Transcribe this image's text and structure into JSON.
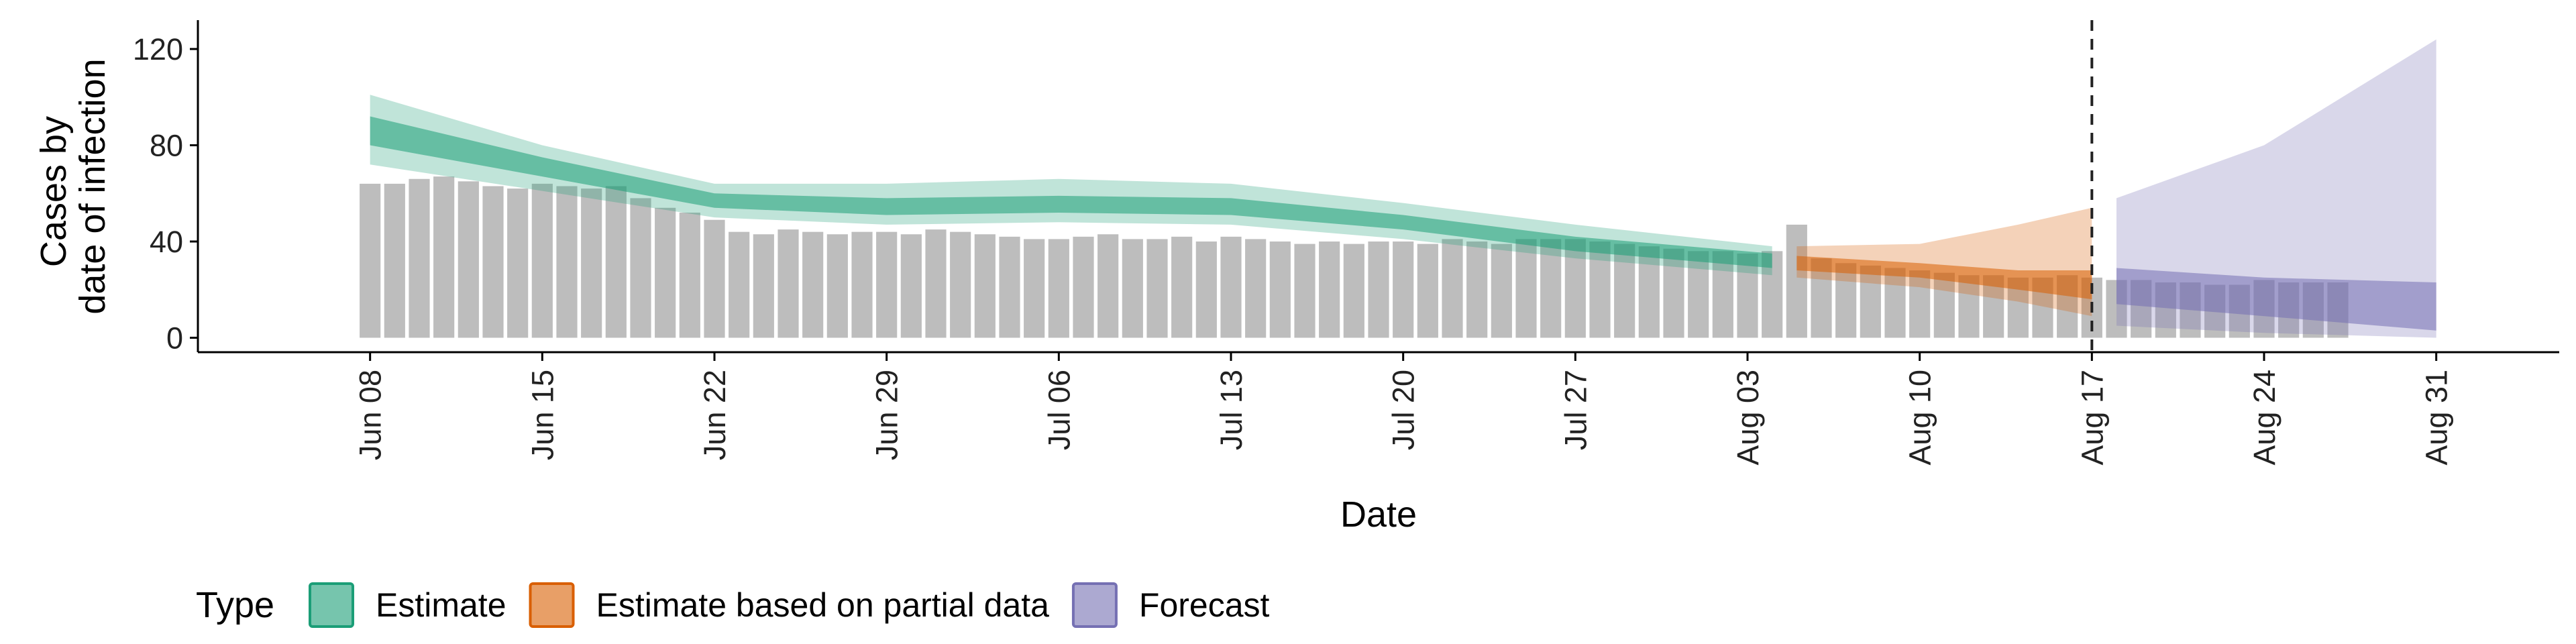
{
  "chart_data": {
    "type": "area",
    "xlabel": "Date",
    "ylabel_lines": [
      "Cases by",
      "date of infection"
    ],
    "ylim": [
      -6,
      132
    ],
    "xlim": [
      "2020-06-01",
      "2020-09-05"
    ],
    "y_ticks": [
      0,
      40,
      80,
      120
    ],
    "x_ticks": [
      {
        "date": "2020-06-08",
        "label": "Jun 08"
      },
      {
        "date": "2020-06-15",
        "label": "Jun 15"
      },
      {
        "date": "2020-06-22",
        "label": "Jun 22"
      },
      {
        "date": "2020-06-29",
        "label": "Jun 29"
      },
      {
        "date": "2020-07-06",
        "label": "Jul 06"
      },
      {
        "date": "2020-07-13",
        "label": "Jul 13"
      },
      {
        "date": "2020-07-20",
        "label": "Jul 20"
      },
      {
        "date": "2020-07-27",
        "label": "Jul 27"
      },
      {
        "date": "2020-08-03",
        "label": "Aug 03"
      },
      {
        "date": "2020-08-10",
        "label": "Aug 10"
      },
      {
        "date": "2020-08-17",
        "label": "Aug 17"
      },
      {
        "date": "2020-08-24",
        "label": "Aug 24"
      },
      {
        "date": "2020-08-31",
        "label": "Aug 31"
      }
    ],
    "forecast_date": "2020-08-17",
    "observed_cases": {
      "start_date": "2020-06-08",
      "values": [
        64,
        64,
        66,
        67,
        65,
        63,
        62,
        64,
        63,
        62,
        63,
        58,
        54,
        52,
        49,
        44,
        43,
        45,
        44,
        43,
        44,
        44,
        43,
        45,
        44,
        43,
        42,
        41,
        41,
        42,
        43,
        41,
        41,
        42,
        40,
        42,
        41,
        40,
        39,
        40,
        39,
        40,
        40,
        39,
        41,
        40,
        39,
        41,
        41,
        41,
        40,
        39,
        38,
        37,
        36,
        36,
        35,
        36,
        47,
        33,
        31,
        30,
        29,
        28,
        27,
        26,
        26,
        25,
        25,
        26,
        25,
        24,
        24,
        23,
        23,
        22,
        22,
        24,
        23,
        23,
        23
      ]
    },
    "series": [
      {
        "name": "Estimate",
        "color": "#1b9e77",
        "points": [
          {
            "date": "2020-06-08",
            "median": 86,
            "lower50": 80,
            "upper50": 92,
            "lower90": 72,
            "upper90": 101
          },
          {
            "date": "2020-06-15",
            "median": 71,
            "lower50": 67,
            "upper50": 75,
            "lower90": 61,
            "upper90": 80
          },
          {
            "date": "2020-06-22",
            "median": 57,
            "lower50": 54,
            "upper50": 60,
            "lower90": 50,
            "upper90": 64
          },
          {
            "date": "2020-06-29",
            "median": 55,
            "lower50": 51,
            "upper50": 58,
            "lower90": 47,
            "upper90": 64
          },
          {
            "date": "2020-07-06",
            "median": 56,
            "lower50": 52,
            "upper50": 59,
            "lower90": 48,
            "upper90": 66
          },
          {
            "date": "2020-07-13",
            "median": 55,
            "lower50": 51,
            "upper50": 58,
            "lower90": 47,
            "upper90": 64
          },
          {
            "date": "2020-07-20",
            "median": 48,
            "lower50": 45,
            "upper50": 51,
            "lower90": 41,
            "upper90": 56
          },
          {
            "date": "2020-07-27",
            "median": 39,
            "lower50": 36,
            "upper50": 42,
            "lower90": 33,
            "upper90": 47
          },
          {
            "date": "2020-08-04",
            "median": 32,
            "lower50": 29,
            "upper50": 35,
            "lower90": 26,
            "upper90": 38
          }
        ]
      },
      {
        "name": "Estimate based on partial data",
        "color": "#d95f02",
        "points": [
          {
            "date": "2020-08-05",
            "median": 31,
            "lower50": 28,
            "upper50": 34,
            "lower90": 25,
            "upper90": 38
          },
          {
            "date": "2020-08-10",
            "median": 28,
            "lower50": 25,
            "upper50": 31,
            "lower90": 21,
            "upper90": 39
          },
          {
            "date": "2020-08-14",
            "median": 24,
            "lower50": 20,
            "upper50": 28,
            "lower90": 15,
            "upper90": 47
          },
          {
            "date": "2020-08-17",
            "median": 22,
            "lower50": 16,
            "upper50": 28,
            "lower90": 9,
            "upper90": 54
          }
        ]
      },
      {
        "name": "Forecast",
        "color": "#7570b3",
        "points": [
          {
            "date": "2020-08-18",
            "median": 22,
            "lower50": 14,
            "upper50": 29,
            "lower90": 5,
            "upper90": 58
          },
          {
            "date": "2020-08-24",
            "median": 16,
            "lower50": 9,
            "upper50": 25,
            "lower90": 2,
            "upper90": 80
          },
          {
            "date": "2020-08-31",
            "median": 13,
            "lower50": 3,
            "upper50": 23,
            "lower90": 0,
            "upper90": 124
          }
        ]
      }
    ],
    "legend": {
      "title": "Type",
      "position": "bottom",
      "items": [
        {
          "label": "Estimate",
          "color": "#1b9e77"
        },
        {
          "label": "Estimate based on partial data",
          "color": "#d95f02"
        },
        {
          "label": "Forecast",
          "color": "#7570b3"
        }
      ]
    },
    "grid": false,
    "bar_color": "#bdbdbd"
  }
}
